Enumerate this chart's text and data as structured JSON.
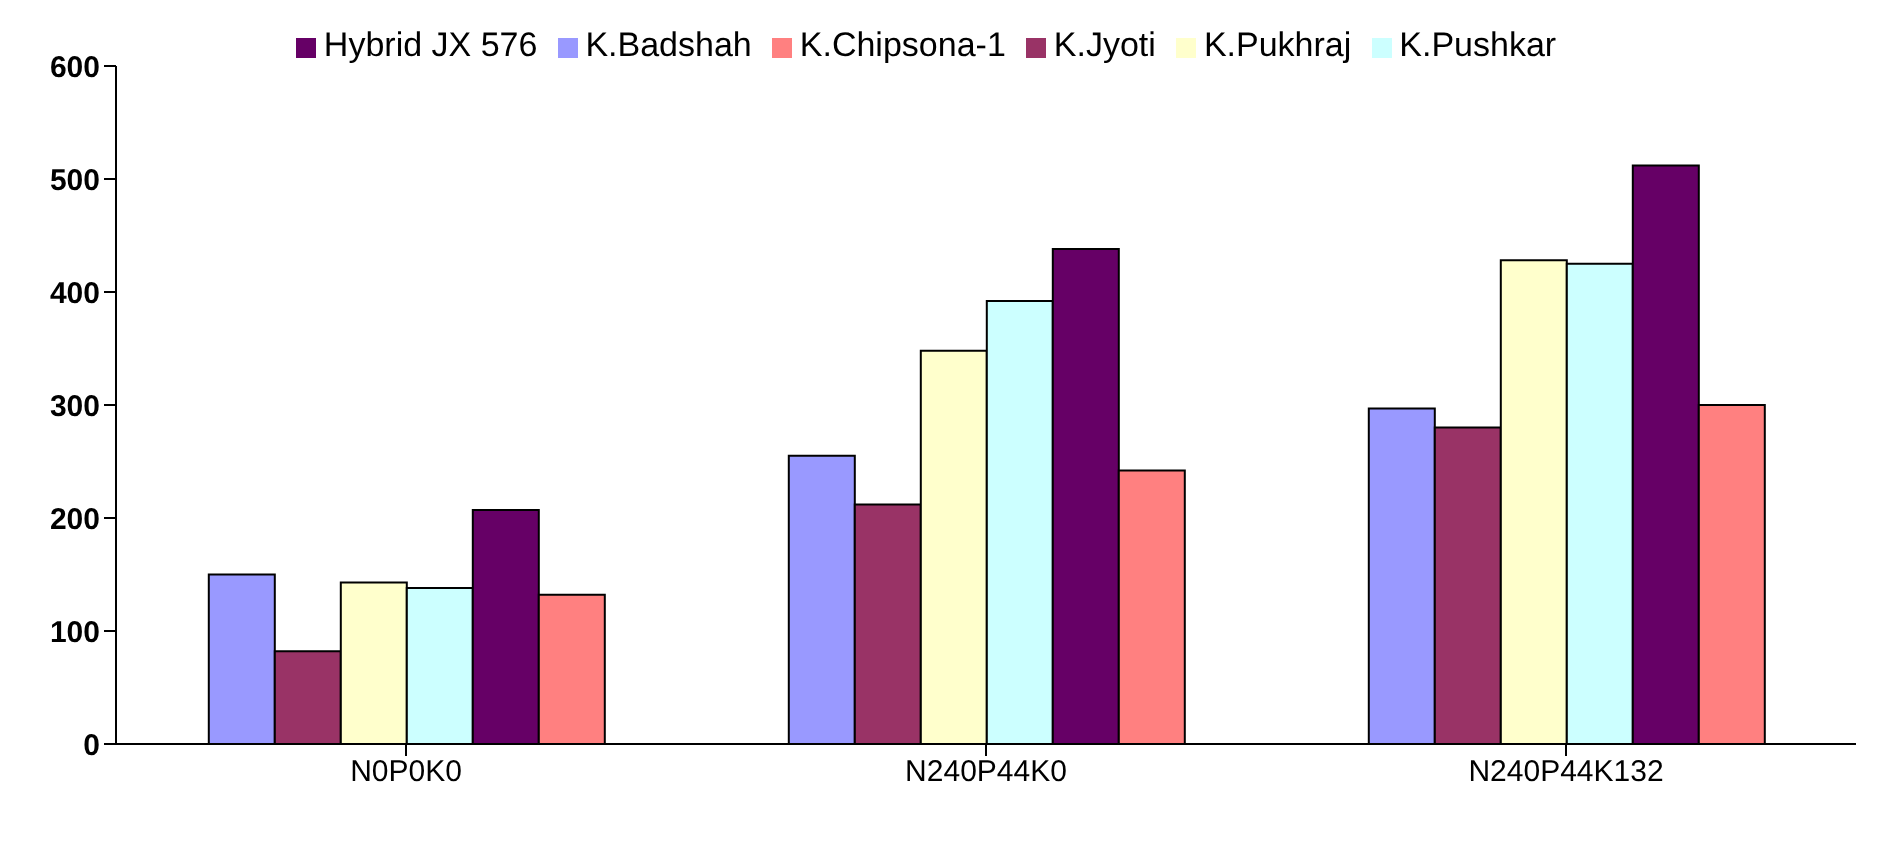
{
  "chart_data": {
    "type": "bar",
    "categories": [
      "N0P0K0",
      "N240P44K0",
      "N240P44K132"
    ],
    "series": [
      {
        "name": "K.Badshah",
        "color": "#9999ff",
        "values": [
          150,
          255,
          297
        ]
      },
      {
        "name": "K.Jyoti",
        "color": "#993366",
        "values": [
          82,
          212,
          280
        ]
      },
      {
        "name": "K.Pukhraj",
        "color": "#ffffcc",
        "values": [
          143,
          348,
          428
        ]
      },
      {
        "name": "K.Pushkar",
        "color": "#ccffff",
        "values": [
          138,
          392,
          425
        ]
      },
      {
        "name": "Hybrid JX 576",
        "color": "#660066",
        "values": [
          207,
          438,
          512
        ]
      },
      {
        "name": "K.Chipsona-1",
        "color": "#ff8080",
        "values": [
          132,
          242,
          300
        ]
      }
    ],
    "ylim": [
      0,
      600
    ],
    "yticks": [
      0,
      100,
      200,
      300,
      400,
      500,
      600
    ],
    "grid": false,
    "legend": "top"
  }
}
